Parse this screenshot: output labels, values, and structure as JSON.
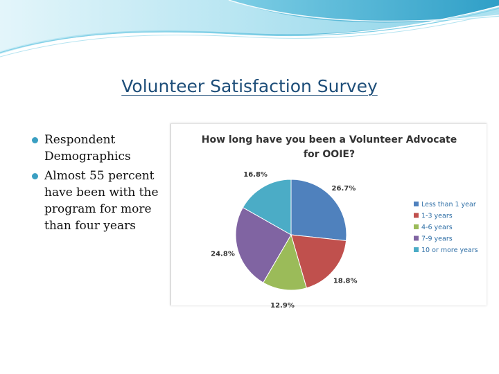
{
  "slide": {
    "title": "Volunteer Satisfaction Survey",
    "bullets": [
      "Respondent Demographics",
      "Almost 55 percent have been with the program for more than four years"
    ]
  },
  "colors": {
    "title": "#1e4e79",
    "bullet": "#3a9fc2",
    "banner_light": "#d9f1f8",
    "banner_mid": "#8fd4e8",
    "banner_dark": "#2a9cc4"
  },
  "chart_data": {
    "type": "pie",
    "title": [
      "How long have you been a Volunteer Advocate",
      "for OOIE?"
    ],
    "legend_position": "right",
    "slices": [
      {
        "name": "Less than 1 year",
        "value": 26.7,
        "label": "26.7%",
        "color": "#4f81bd"
      },
      {
        "name": "1-3 years",
        "value": 18.8,
        "label": "18.8%",
        "color": "#c0504d"
      },
      {
        "name": "4-6 years",
        "value": 12.9,
        "label": "12.9%",
        "color": "#9bbb59"
      },
      {
        "name": "7-9 years",
        "value": 24.8,
        "label": "24.8%",
        "color": "#8064a2"
      },
      {
        "name": "10 or more years",
        "value": 16.8,
        "label": "16.8%",
        "color": "#4bacc6"
      }
    ]
  }
}
